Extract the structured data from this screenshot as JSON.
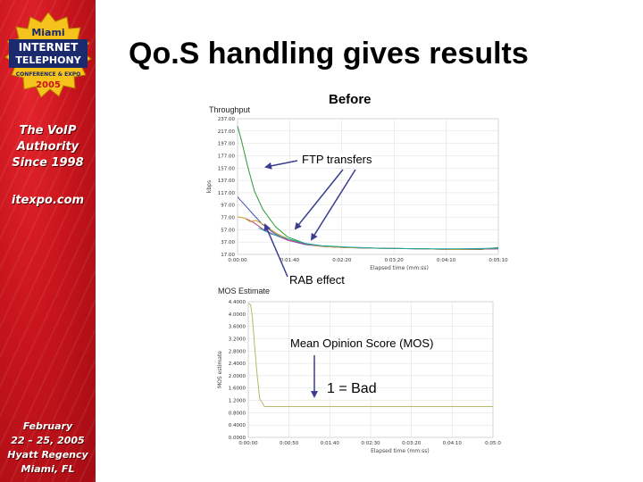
{
  "slide": {
    "title": "Qo.S handling gives results",
    "subtitle": "Before"
  },
  "sidebar": {
    "logo": {
      "line1": "Miami",
      "line2": "INTERNET",
      "line3": "TELEPHONY",
      "line4": "CONFERENCE & EXPO",
      "line5": "2005"
    },
    "tagline": [
      "The VoIP",
      "Authority",
      "Since 1998"
    ],
    "website": "itexpo.com",
    "event": [
      "February",
      "22 – 25, 2005",
      "Hyatt Regency",
      "Miami, FL"
    ]
  },
  "annotations": {
    "ftp": "FTP transfers",
    "rab": "RAB effect",
    "mos": "Mean Opinion Score (MOS)",
    "bad": "1 = Bad"
  },
  "colors": {
    "sidebar_red": "#c8141c",
    "logo_gold": "#f6c21c",
    "arrow": "#3a3f8f",
    "mos_line": "#b8b86a"
  },
  "chart_data": [
    {
      "type": "line",
      "title": "Throughput",
      "ylabel": "kbps",
      "xlabel": "Elapsed time (mm:ss)",
      "y_ticks": [
        "17.00",
        "37.00",
        "57.00",
        "77.00",
        "97.00",
        "117.00",
        "137.00",
        "157.00",
        "177.00",
        "197.00",
        "217.00",
        "237.00"
      ],
      "x_ticks": [
        "0:00:00",
        "0:01:40",
        "0:02:20",
        "0:03:20",
        "0:04:10",
        "0:05:10"
      ],
      "ylim": [
        17,
        237
      ],
      "xlim": [
        0,
        310
      ],
      "grid": true,
      "series": [
        {
          "color": "#2a9a3a",
          "x": [
            0,
            5,
            12,
            20,
            30,
            45,
            60,
            80,
            100,
            130,
            170,
            220,
            260,
            290,
            300,
            310
          ],
          "y": [
            225,
            200,
            160,
            120,
            90,
            62,
            45,
            35,
            30,
            28,
            27,
            26,
            25,
            25,
            27,
            28
          ]
        },
        {
          "color": "#3d4fb5",
          "x": [
            0,
            10,
            20,
            30,
            45,
            60,
            80,
            100,
            130,
            170,
            220,
            260,
            310
          ],
          "y": [
            110,
            95,
            80,
            65,
            50,
            40,
            33,
            30,
            28,
            27,
            26,
            25,
            26
          ]
        },
        {
          "color": "#c03a8a",
          "x": [
            10,
            20,
            30,
            45,
            60,
            80,
            100,
            130,
            170,
            220,
            260,
            310
          ],
          "y": [
            75,
            68,
            58,
            48,
            40,
            34,
            30,
            28,
            27,
            26,
            25,
            26
          ]
        },
        {
          "color": "#c8a020",
          "x": [
            0,
            8,
            15,
            22,
            30,
            45,
            60,
            80,
            100,
            130,
            170,
            220,
            260,
            310
          ],
          "y": [
            78,
            76,
            70,
            72,
            66,
            52,
            42,
            35,
            30,
            28,
            27,
            26,
            25,
            27
          ]
        },
        {
          "color": "#18a8b0",
          "x": [
            25,
            40,
            60,
            80,
            100,
            130,
            170,
            220,
            260,
            310
          ],
          "y": [
            60,
            50,
            42,
            35,
            31,
            29,
            27,
            26,
            26,
            27
          ]
        }
      ]
    },
    {
      "type": "line",
      "title": "MOS Estimate",
      "ylabel": "MOS estimate",
      "xlabel": "Elapsed time (mm:ss)",
      "y_ticks": [
        "0.0000",
        "0.4000",
        "0.8000",
        "1.2000",
        "1.6000",
        "2.0000",
        "2.4000",
        "2.8000",
        "3.2000",
        "3.6000",
        "4.0000",
        "4.4000"
      ],
      "x_ticks": [
        "0:00:00",
        "0:00:50",
        "0:01:40",
        "0:02:30",
        "0:03:20",
        "0:04:10",
        "0:05:0"
      ],
      "ylim": [
        0,
        4.4
      ],
      "xlim": [
        0,
        300
      ],
      "grid": true,
      "series": [
        {
          "color": "#b8b86a",
          "x": [
            0,
            3,
            5,
            8,
            11,
            14,
            20,
            40,
            100,
            200,
            300
          ],
          "y": [
            4.35,
            4.3,
            3.9,
            2.9,
            2.0,
            1.25,
            1.0,
            1.0,
            1.0,
            1.0,
            1.0
          ]
        }
      ]
    }
  ]
}
